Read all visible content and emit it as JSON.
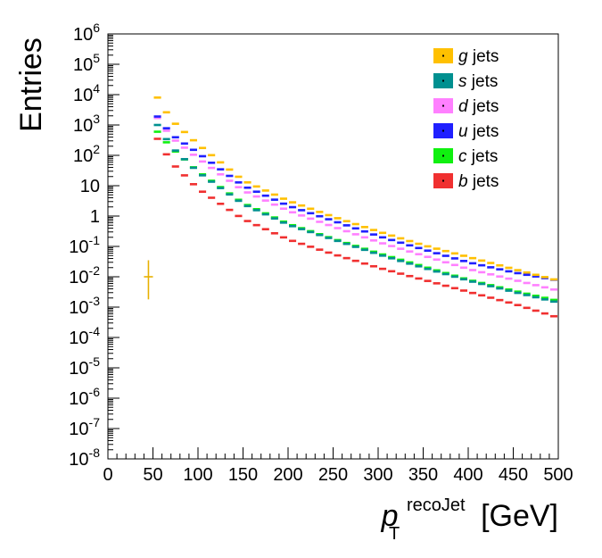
{
  "chart_data": {
    "type": "histogram",
    "xlabel": {
      "base": "p",
      "subscript": "T",
      "superscript": "recoJet",
      "unit": "[GeV]"
    },
    "ylabel": "Entries",
    "xlim": [
      0,
      500
    ],
    "ylim": [
      1e-08,
      1000000.0
    ],
    "yscale": "log",
    "grid": false,
    "legend_position": "top-right",
    "x_ticks": [
      "0",
      "50",
      "100",
      "150",
      "200",
      "250",
      "300",
      "350",
      "400",
      "450",
      "500"
    ],
    "y_ticks": [
      {
        "mantissa": "10",
        "exp": "-8"
      },
      {
        "mantissa": "10",
        "exp": "-7"
      },
      {
        "mantissa": "10",
        "exp": "-6"
      },
      {
        "mantissa": "10",
        "exp": "-5"
      },
      {
        "mantissa": "10",
        "exp": "-4"
      },
      {
        "mantissa": "10",
        "exp": "-3"
      },
      {
        "mantissa": "10",
        "exp": "-2"
      },
      {
        "mantissa": "10",
        "exp": "-1"
      },
      {
        "mantissa": "1",
        "exp": ""
      },
      {
        "mantissa": "10",
        "exp": ""
      },
      {
        "mantissa": "10",
        "exp": "2"
      },
      {
        "mantissa": "10",
        "exp": "3"
      },
      {
        "mantissa": "10",
        "exp": "4"
      },
      {
        "mantissa": "10",
        "exp": "5"
      },
      {
        "mantissa": "10",
        "exp": "6"
      }
    ],
    "bin_width": 10,
    "x_start": 50,
    "series": [
      {
        "key": "g",
        "name": "g",
        "name_suffix": " jets",
        "color": "#ffc000",
        "anchors": [
          [
            55,
            8000
          ],
          [
            70,
            1500
          ],
          [
            100,
            230
          ],
          [
            150,
            15
          ],
          [
            200,
            3.2
          ],
          [
            250,
            0.95
          ],
          [
            300,
            0.31
          ],
          [
            350,
            0.11
          ],
          [
            400,
            0.045
          ],
          [
            450,
            0.018
          ],
          [
            500,
            0.0075
          ]
        ]
      },
      {
        "key": "s",
        "name": "s",
        "name_suffix": " jets",
        "color": "#009090",
        "anchors": [
          [
            55,
            1000
          ],
          [
            70,
            200
          ],
          [
            100,
            28
          ],
          [
            150,
            2.5
          ],
          [
            200,
            0.52
          ],
          [
            250,
            0.17
          ],
          [
            300,
            0.055
          ],
          [
            350,
            0.02
          ],
          [
            400,
            0.0075
          ],
          [
            450,
            0.0032
          ],
          [
            500,
            0.0014
          ]
        ]
      },
      {
        "key": "d",
        "name": "d",
        "name_suffix": " jets",
        "color": "#ff80ff",
        "anchors": [
          [
            55,
            1700
          ],
          [
            70,
            400
          ],
          [
            100,
            80
          ],
          [
            150,
            7
          ],
          [
            200,
            1.5
          ],
          [
            250,
            0.45
          ],
          [
            300,
            0.14
          ],
          [
            350,
            0.05
          ],
          [
            400,
            0.018
          ],
          [
            450,
            0.008
          ],
          [
            500,
            0.0035
          ]
        ]
      },
      {
        "key": "u",
        "name": "u",
        "name_suffix": " jets",
        "color": "#2020ff",
        "anchors": [
          [
            55,
            1900
          ],
          [
            70,
            500
          ],
          [
            100,
            120
          ],
          [
            150,
            10
          ],
          [
            200,
            2.2
          ],
          [
            250,
            0.7
          ],
          [
            300,
            0.22
          ],
          [
            350,
            0.08
          ],
          [
            400,
            0.03
          ],
          [
            450,
            0.014
          ],
          [
            500,
            0.0075
          ]
        ]
      },
      {
        "key": "c",
        "name": "c",
        "name_suffix": " jets",
        "color": "#10f010",
        "anchors": [
          [
            55,
            600
          ],
          [
            70,
            180
          ],
          [
            100,
            30
          ],
          [
            150,
            2.7
          ],
          [
            200,
            0.56
          ],
          [
            250,
            0.18
          ],
          [
            300,
            0.06
          ],
          [
            350,
            0.022
          ],
          [
            400,
            0.008
          ],
          [
            450,
            0.0035
          ],
          [
            500,
            0.0016
          ]
        ]
      },
      {
        "key": "b",
        "name": "b",
        "name_suffix": " jets",
        "color": "#f03030",
        "anchors": [
          [
            55,
            350
          ],
          [
            70,
            60
          ],
          [
            100,
            8
          ],
          [
            150,
            0.8
          ],
          [
            200,
            0.17
          ],
          [
            250,
            0.056
          ],
          [
            300,
            0.02
          ],
          [
            350,
            0.008
          ],
          [
            400,
            0.0032
          ],
          [
            450,
            0.0013
          ],
          [
            500,
            0.00045
          ]
        ]
      }
    ],
    "outlier": {
      "x": 45,
      "y": 0.01,
      "y_err": [
        0.0018,
        0.035
      ],
      "color": "#e8b000"
    }
  }
}
